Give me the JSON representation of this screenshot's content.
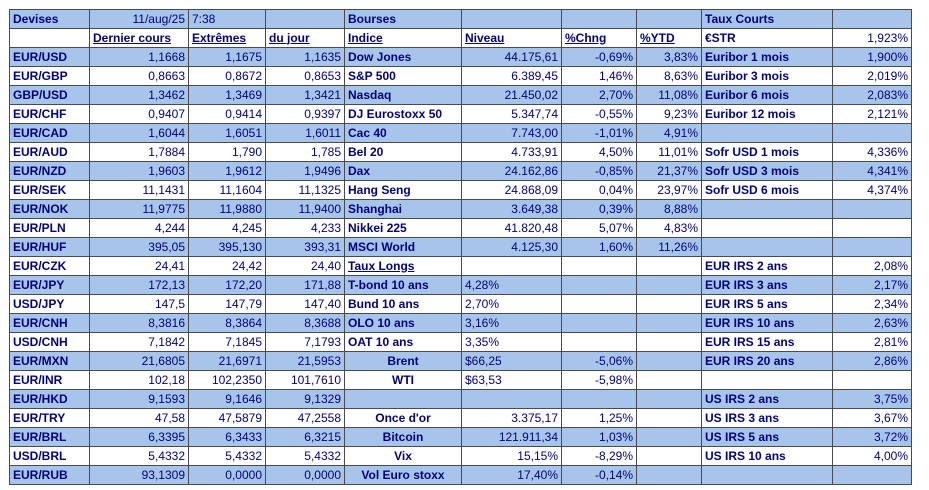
{
  "header": {
    "devises": "Devises",
    "date": "11/aug/25",
    "time": "7:38",
    "bourses": "Bourses",
    "taux_courts": "Taux Courts"
  },
  "subheader": {
    "dernier": "Dernier cours",
    "extremes": "Extrêmes",
    "du_jour": "du jour",
    "indice": "Indice",
    "niveau": "Niveau",
    "chng": "%Chng",
    "ytd": "%YTD",
    "estr": "€STR",
    "estr_value": "1,923%"
  },
  "rows": [
    [
      "EUR/USD",
      "1,1668",
      "1,1675",
      "1,1635",
      "Dow Jones",
      "44.175,61",
      "-0,69%",
      "3,83%",
      "Euribor 1 mois",
      "1,900%"
    ],
    [
      "EUR/GBP",
      "0,8663",
      "0,8672",
      "0,8653",
      "S&P 500",
      "6.389,45",
      "1,46%",
      "8,63%",
      "Euribor 3 mois",
      "2,019%"
    ],
    [
      "GBP/USD",
      "1,3462",
      "1,3469",
      "1,3421",
      "Nasdaq",
      "21.450,02",
      "2,70%",
      "11,08%",
      "Euribor 6 mois",
      "2,083%"
    ],
    [
      "EUR/CHF",
      "0,9407",
      "0,9414",
      "0,9397",
      "DJ Eurostoxx 50",
      "5.347,74",
      "-0,55%",
      "9,23%",
      "Euribor 12 mois",
      "2,121%"
    ],
    [
      "EUR/CAD",
      "1,6044",
      "1,6051",
      "1,6011",
      "Cac 40",
      "7.743,00",
      "-1,01%",
      "4,91%",
      "",
      ""
    ],
    [
      "EUR/AUD",
      "1,7884",
      "1,790",
      "1,785",
      "Bel 20",
      "4.733,91",
      "4,50%",
      "11,01%",
      "Sofr USD 1 mois",
      "4,336%"
    ],
    [
      "EUR/NZD",
      "1,9603",
      "1,9612",
      "1,9496",
      "Dax",
      "24.162,86",
      "-0,85%",
      "21,37%",
      "Sofr USD 3 mois",
      "4,341%"
    ],
    [
      "EUR/SEK",
      "11,1431",
      "11,1604",
      "11,1325",
      "Hang Seng",
      "24.868,09",
      "0,04%",
      "23,97%",
      "Sofr USD 6 mois",
      "4,374%"
    ],
    [
      "EUR/NOK",
      "11,9775",
      "11,9880",
      "11,9400",
      "Shanghai",
      "3.649,38",
      "0,39%",
      "8,88%",
      "",
      ""
    ],
    [
      "EUR/PLN",
      "4,244",
      "4,245",
      "4,233",
      "Nikkei 225",
      "41.820,48",
      "5,07%",
      "4,83%",
      "",
      ""
    ],
    [
      "EUR/HUF",
      "395,05",
      "395,130",
      "393,31",
      "MSCI World",
      "4.125,30",
      "1,60%",
      "11,26%",
      "",
      ""
    ],
    [
      "EUR/CZK",
      "24,41",
      "24,42",
      "24,40",
      "Taux Longs",
      "",
      "",
      "",
      "EUR IRS 2 ans",
      "2,08%"
    ],
    [
      "EUR/JPY",
      "172,13",
      "172,20",
      "171,88",
      "T-bond 10 ans",
      "4,28%",
      "",
      "",
      "EUR IRS 3 ans",
      "2,17%"
    ],
    [
      "USD/JPY",
      "147,5",
      "147,79",
      "147,40",
      "Bund 10 ans",
      "2,70%",
      "",
      "",
      "EUR IRS 5 ans",
      "2,34%"
    ],
    [
      "EUR/CNH",
      "8,3816",
      "8,3864",
      "8,3688",
      "OLO 10 ans",
      "3,16%",
      "",
      "",
      "EUR IRS 10 ans",
      "2,63%"
    ],
    [
      "USD/CNH",
      "7,1842",
      "7,1845",
      "7,1793",
      "OAT 10 ans",
      "3,35%",
      "",
      "",
      "EUR IRS 15 ans",
      "2,81%"
    ],
    [
      "EUR/MXN",
      "21,6805",
      "21,6971",
      "21,5953",
      "Brent",
      "$66,25",
      "-5,06%",
      "",
      "EUR IRS 20 ans",
      "2,86%"
    ],
    [
      "EUR/INR",
      "102,18",
      "102,2350",
      "101,7610",
      "WTI",
      "$63,53",
      "-5,98%",
      "",
      "",
      ""
    ],
    [
      "EUR/HKD",
      "9,1593",
      "9,1646",
      "9,1329",
      "",
      "",
      "",
      "",
      "US IRS 2 ans",
      "3,75%"
    ],
    [
      "EUR/TRY",
      "47,58",
      "47,5879",
      "47,2558",
      "Once d'or",
      "3.375,17",
      "1,25%",
      "",
      "US IRS 3 ans",
      "3,67%"
    ],
    [
      "EUR/BRL",
      "6,3395",
      "6,3433",
      "6,3215",
      "Bitcoin",
      "121.911,34",
      "1,03%",
      "",
      "US IRS 5 ans",
      "3,72%"
    ],
    [
      "USD/BRL",
      "5,4332",
      "5,4332",
      "5,4332",
      "Vix",
      "15,15%",
      "-8,29%",
      "",
      "US IRS 10 ans",
      "4,00%"
    ],
    [
      "EUR/RUB",
      "93,1309",
      "0,0000",
      "0,0000",
      "Vol Euro stoxx",
      "17,40%",
      "-0,14%",
      "",
      "",
      ""
    ]
  ],
  "colors": {
    "blue_row": "#a7c5eb",
    "text": "#000080",
    "border": "#4a4a4a"
  }
}
